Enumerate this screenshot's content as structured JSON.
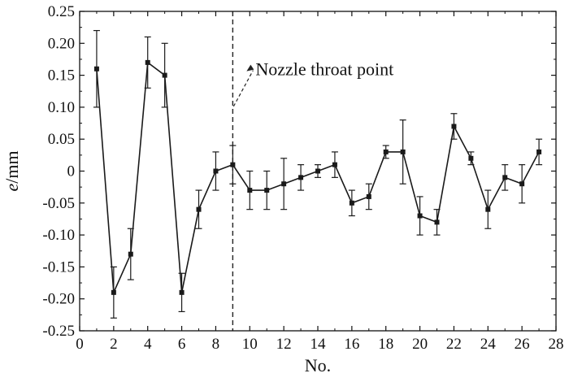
{
  "chart_data": {
    "type": "line",
    "xlabel": "No.",
    "ylabel_italic": "e",
    "ylabel_rest": "/mm",
    "xlim": [
      0,
      28
    ],
    "ylim": [
      -0.25,
      0.25
    ],
    "x_ticks": [
      0,
      2,
      4,
      6,
      8,
      10,
      12,
      14,
      16,
      18,
      20,
      22,
      24,
      26,
      28
    ],
    "x_tick_labels": [
      "0",
      "2",
      "4",
      "6",
      "8",
      "10",
      "12",
      "14",
      "16",
      "18",
      "20",
      "22",
      "24",
      "26",
      "28"
    ],
    "y_ticks": [
      0.25,
      0.2,
      0.15,
      0.1,
      0.05,
      0,
      -0.05,
      -0.1,
      -0.15,
      -0.2,
      -0.25
    ],
    "y_tick_labels": [
      "0.25",
      "0.20",
      "0.15",
      "0.10",
      "0.05",
      "0",
      "-0.05",
      "-0.10",
      "-0.15",
      "-0.20",
      "-0.25"
    ],
    "grid": false,
    "reference_line": {
      "x": 9,
      "style": "dashed"
    },
    "annotation": {
      "text": "Nozzle throat point",
      "points_to_x": 9,
      "points_to_y": 0.1
    },
    "series": [
      {
        "marker": "square",
        "color": "#1a1a1a",
        "x": [
          1,
          2,
          3,
          4,
          5,
          6,
          7,
          8,
          9,
          10,
          11,
          12,
          13,
          14,
          15,
          16,
          17,
          18,
          19,
          20,
          21,
          22,
          23,
          24,
          25,
          26,
          27
        ],
        "y": [
          0.16,
          -0.19,
          -0.13,
          0.17,
          0.15,
          -0.19,
          -0.06,
          0.0,
          0.01,
          -0.03,
          -0.03,
          -0.02,
          -0.01,
          0.0,
          0.01,
          -0.05,
          -0.04,
          0.03,
          0.03,
          -0.07,
          -0.08,
          0.07,
          0.02,
          -0.06,
          -0.01,
          -0.02,
          0.03
        ],
        "err_upper": [
          0.22,
          -0.15,
          -0.09,
          0.21,
          0.2,
          -0.16,
          -0.03,
          0.03,
          0.04,
          0.0,
          0.0,
          0.02,
          0.01,
          0.01,
          0.03,
          -0.03,
          -0.02,
          0.04,
          0.08,
          -0.04,
          -0.06,
          0.09,
          0.03,
          -0.03,
          0.01,
          0.01,
          0.05
        ],
        "err_lower": [
          0.1,
          -0.23,
          -0.17,
          0.13,
          0.1,
          -0.22,
          -0.09,
          -0.03,
          -0.02,
          -0.06,
          -0.06,
          -0.06,
          -0.03,
          -0.01,
          -0.01,
          -0.07,
          -0.06,
          0.02,
          -0.02,
          -0.1,
          -0.1,
          0.05,
          0.01,
          -0.09,
          -0.03,
          -0.05,
          0.01
        ]
      }
    ]
  }
}
